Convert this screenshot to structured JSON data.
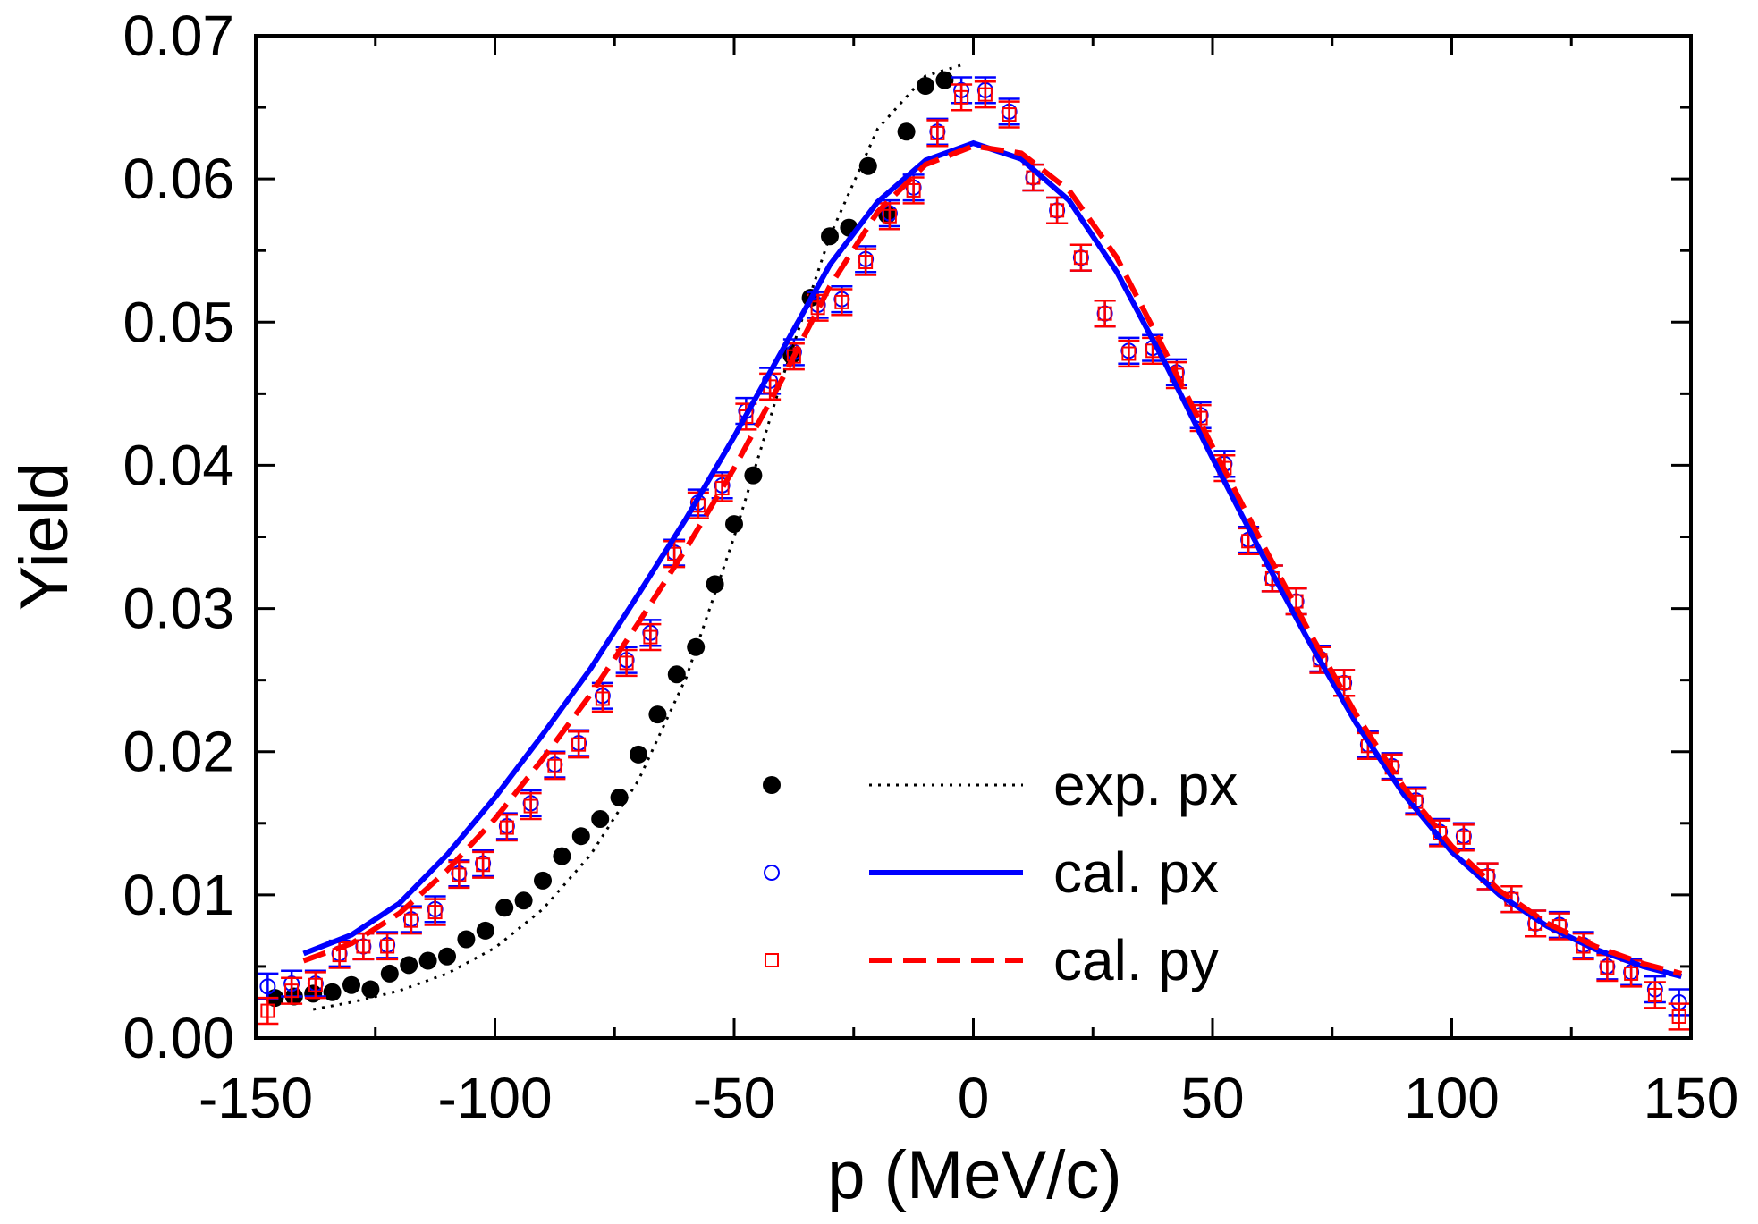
{
  "chart_data": {
    "type": "scatter",
    "x_label": "p (MeV/c)",
    "y_label": "Yield",
    "xlim": [
      -150,
      150
    ],
    "ylim": [
      0,
      0.07
    ],
    "xticks": [
      -150,
      -100,
      -50,
      0,
      50,
      100,
      150
    ],
    "yticks": [
      {
        "value": 0,
        "label": "0.00"
      },
      0.01,
      0.02,
      0.03,
      0.04,
      0.05,
      0.06,
      0.07
    ],
    "xminorticks": [
      -125,
      -75,
      -25,
      25,
      75,
      125
    ],
    "yminorticks": [
      0.005,
      0.015,
      0.025,
      0.035,
      0.045,
      0.055,
      0.065
    ],
    "series": [
      {
        "name": "exp. px",
        "color": "#000000",
        "marker": "dot",
        "line": "dotted",
        "x": [
          -146,
          -142,
          -138,
          -134,
          -130,
          -126,
          -122,
          -118,
          -114,
          -110,
          -106,
          -102,
          -98,
          -94,
          -90,
          -86,
          -82,
          -78,
          -74,
          -70,
          -66,
          -62,
          -58,
          -54,
          -50,
          -46,
          -38,
          -34,
          -30,
          -26,
          -22,
          -18,
          -14,
          -10,
          -6
        ],
        "values": [
          0.0028,
          0.0029,
          0.0031,
          0.0032,
          0.0037,
          0.0034,
          0.0045,
          0.0051,
          0.0054,
          0.0057,
          0.0069,
          0.0075,
          0.0091,
          0.0096,
          0.011,
          0.0127,
          0.0141,
          0.0153,
          0.0168,
          0.0198,
          0.0226,
          0.0254,
          0.0273,
          0.0317,
          0.0359,
          0.0393,
          0.0477,
          0.0517,
          0.056,
          0.0566,
          0.0609,
          0.0575,
          0.0633,
          0.0665,
          0.0669
        ],
        "fit_x": [
          -138,
          -130,
          -120,
          -110,
          -100,
          -90,
          -80,
          -70,
          -60,
          -50,
          -40,
          -30,
          -20,
          -10,
          -2
        ],
        "fit_values": [
          0.002,
          0.0025,
          0.0033,
          0.0045,
          0.0063,
          0.009,
          0.0128,
          0.018,
          0.0252,
          0.035,
          0.046,
          0.056,
          0.0635,
          0.0672,
          0.068
        ]
      },
      {
        "name": "cal. px",
        "color": "#0000ff",
        "marker": "circle",
        "line": "solid",
        "error": 0.0009,
        "x": [
          -147.5,
          -142.5,
          -137.5,
          -132.5,
          -127.5,
          -122.5,
          -117.5,
          -112.5,
          -107.5,
          -102.5,
          -97.5,
          -92.5,
          -87.5,
          -82.5,
          -77.5,
          -72.5,
          -67.5,
          -62.5,
          -57.5,
          -52.5,
          -47.5,
          -42.5,
          -37.5,
          -32.5,
          -27.5,
          -22.5,
          -17.5,
          -12.5,
          -7.5,
          -2.5,
          2.5,
          7.5,
          12.5,
          17.5,
          22.5,
          27.5,
          32.5,
          37.5,
          42.5,
          47.5,
          52.5,
          57.5,
          62.5,
          67.5,
          72.5,
          77.5,
          82.5,
          87.5,
          92.5,
          97.5,
          102.5,
          107.5,
          112.5,
          117.5,
          122.5,
          127.5,
          132.5,
          137.5,
          142.5,
          147.5
        ],
        "values": [
          0.0036,
          0.0038,
          0.0038,
          0.0059,
          0.0064,
          0.0065,
          0.0083,
          0.009,
          0.0115,
          0.0122,
          0.0148,
          0.0164,
          0.0191,
          0.0206,
          0.0239,
          0.0264,
          0.0283,
          0.0339,
          0.0374,
          0.0386,
          0.0438,
          0.0459,
          0.0479,
          0.0512,
          0.0516,
          0.0544,
          0.0576,
          0.0594,
          0.0633,
          0.0662,
          0.0662,
          0.0647,
          0.0601,
          0.0578,
          0.0545,
          0.0506,
          0.048,
          0.0482,
          0.0465,
          0.0435,
          0.0401,
          0.0348,
          0.0321,
          0.0305,
          0.0265,
          0.0248,
          0.0205,
          0.019,
          0.0166,
          0.0144,
          0.0141,
          0.0113,
          0.0097,
          0.008,
          0.0079,
          0.0065,
          0.005,
          0.0046,
          0.0034,
          0.0025
        ],
        "fit_x": [
          -140,
          -130,
          -120,
          -110,
          -100,
          -90,
          -80,
          -70,
          -60,
          -50,
          -40,
          -30,
          -20,
          -10,
          0,
          10,
          20,
          30,
          40,
          50,
          60,
          70,
          80,
          90,
          100,
          110,
          120,
          130,
          140,
          148
        ],
        "fit_values": [
          0.0059,
          0.0072,
          0.0094,
          0.0128,
          0.0168,
          0.0212,
          0.0258,
          0.031,
          0.0363,
          0.042,
          0.048,
          0.054,
          0.0584,
          0.0613,
          0.0625,
          0.0614,
          0.0585,
          0.0535,
          0.0472,
          0.0405,
          0.034,
          0.0278,
          0.022,
          0.017,
          0.013,
          0.01,
          0.0078,
          0.0062,
          0.005,
          0.0043
        ]
      },
      {
        "name": "cal. py",
        "color": "#ff0000",
        "marker": "square",
        "line": "dashed",
        "error": 0.0009,
        "x": [
          -147.5,
          -142.5,
          -137.5,
          -132.5,
          -127.5,
          -122.5,
          -117.5,
          -112.5,
          -107.5,
          -102.5,
          -97.5,
          -92.5,
          -87.5,
          -82.5,
          -77.5,
          -72.5,
          -67.5,
          -62.5,
          -57.5,
          -52.5,
          -47.5,
          -42.5,
          -37.5,
          -32.5,
          -27.5,
          -22.5,
          -17.5,
          -12.5,
          -7.5,
          -2.5,
          2.5,
          7.5,
          12.5,
          17.5,
          22.5,
          27.5,
          32.5,
          37.5,
          42.5,
          47.5,
          52.5,
          57.5,
          62.5,
          67.5,
          72.5,
          77.5,
          82.5,
          87.5,
          92.5,
          97.5,
          102.5,
          107.5,
          112.5,
          117.5,
          122.5,
          127.5,
          132.5,
          137.5,
          142.5,
          147.5
        ],
        "values": [
          0.0019,
          0.0033,
          0.0037,
          0.0058,
          0.0064,
          0.0064,
          0.0082,
          0.0088,
          0.0114,
          0.0121,
          0.0147,
          0.0162,
          0.019,
          0.0205,
          0.0237,
          0.0262,
          0.028,
          0.0338,
          0.0372,
          0.0384,
          0.0434,
          0.0455,
          0.0476,
          0.051,
          0.0514,
          0.0542,
          0.0574,
          0.0592,
          0.0632,
          0.0657,
          0.0659,
          0.0645,
          0.0601,
          0.0578,
          0.0545,
          0.0506,
          0.0478,
          0.048,
          0.0463,
          0.0433,
          0.0398,
          0.0347,
          0.0321,
          0.0305,
          0.0264,
          0.0248,
          0.0204,
          0.0189,
          0.0165,
          0.0143,
          0.014,
          0.0113,
          0.0097,
          0.008,
          0.0078,
          0.0064,
          0.0049,
          0.0045,
          0.003,
          0.0015
        ],
        "fit_x": [
          -140,
          -130,
          -120,
          -110,
          -100,
          -90,
          -80,
          -70,
          -60,
          -50,
          -40,
          -30,
          -20,
          -10,
          0,
          10,
          20,
          30,
          40,
          50,
          60,
          70,
          80,
          90,
          100,
          110,
          120,
          130,
          140,
          148
        ],
        "fit_values": [
          0.0054,
          0.0066,
          0.0087,
          0.0117,
          0.0153,
          0.0195,
          0.024,
          0.029,
          0.0342,
          0.0398,
          0.046,
          0.0525,
          0.0577,
          0.061,
          0.0623,
          0.0618,
          0.0592,
          0.0545,
          0.048,
          0.0413,
          0.0348,
          0.0285,
          0.0226,
          0.0175,
          0.0134,
          0.0103,
          0.008,
          0.0064,
          0.0052,
          0.0045
        ]
      }
    ]
  }
}
